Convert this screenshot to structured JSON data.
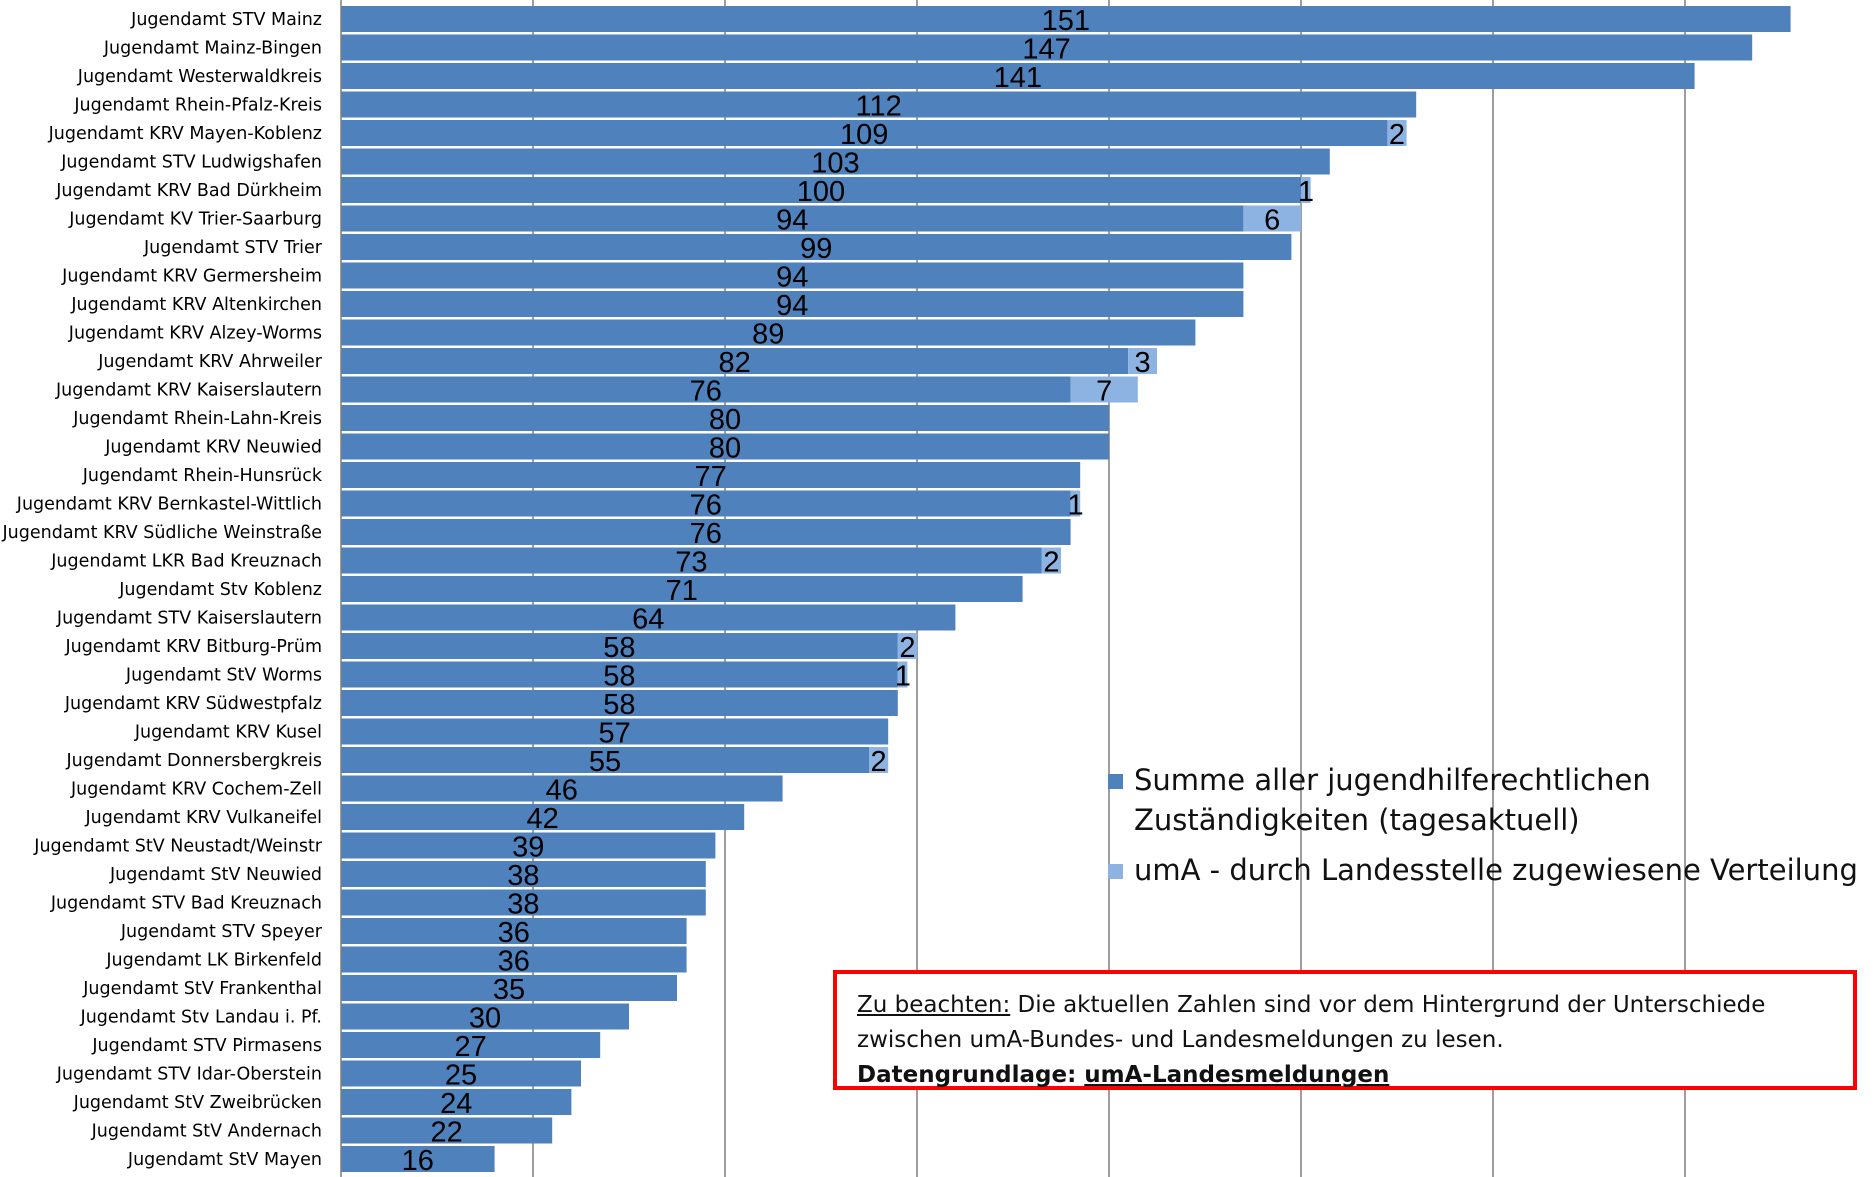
{
  "colors": {
    "series1": "#4f81bd",
    "series2": "#8db3e2",
    "gridline": "#7f7f7f",
    "note_border": "#ff0000"
  },
  "legend": {
    "items": [
      {
        "label": "Summe aller jugendhilferechtlichen Zuständigkeiten (tagesaktuell)",
        "color": "#4f81bd"
      },
      {
        "label": "umA - durch Landesstelle zugewiesene Verteilung",
        "color": "#8db3e2"
      }
    ]
  },
  "note": {
    "prefix": "Zu beachten:",
    "text": " Die aktuellen Zahlen sind vor dem Hintergrund der Unterschiede zwischen umA-Bundes- und Landesmeldungen zu lesen.",
    "source_label": "Datengrundlage: ",
    "source_value": "umA-Landesmeldungen"
  },
  "chart_data": {
    "type": "bar",
    "orientation": "horizontal",
    "stacked": true,
    "xlim": [
      0,
      160
    ],
    "grid": true,
    "legend_position": "bottom-right",
    "categories": [
      "Jugendamt STV Mainz",
      "Jugendamt Mainz-Bingen",
      "Jugendamt Westerwaldkreis",
      "Jugendamt Rhein-Pfalz-Kreis",
      "Jugendamt KRV Mayen-Koblenz",
      "Jugendamt STV Ludwigshafen",
      "Jugendamt KRV Bad Dürkheim",
      "Jugendamt KV Trier-Saarburg",
      "Jugendamt STV Trier",
      "Jugendamt KRV Germersheim",
      "Jugendamt KRV Altenkirchen",
      "Jugendamt KRV Alzey-Worms",
      "Jugendamt KRV Ahrweiler",
      "Jugendamt KRV Kaiserslautern",
      "Jugendamt Rhein-Lahn-Kreis",
      "Jugendamt KRV Neuwied",
      "Jugendamt Rhein-Hunsrück",
      "Jugendamt KRV Bernkastel-Wittlich",
      "Jugendamt KRV Südliche Weinstraße",
      "Jugendamt LKR Bad Kreuznach",
      "Jugendamt Stv Koblenz",
      "Jugendamt STV Kaiserslautern",
      "Jugendamt KRV Bitburg-Prüm",
      "Jugendamt StV Worms",
      "Jugendamt KRV Südwestpfalz",
      "Jugendamt KRV Kusel",
      "Jugendamt Donnersbergkreis",
      "Jugendamt KRV Cochem-Zell",
      "Jugendamt KRV Vulkaneifel",
      "Jugendamt StV Neustadt/Weinstr",
      "Jugendamt StV Neuwied",
      "Jugendamt STV Bad Kreuznach",
      "Jugendamt STV Speyer",
      "Jugendamt LK Birkenfeld",
      "Jugendamt StV Frankenthal",
      "Jugendamt Stv Landau i. Pf.",
      "Jugendamt STV Pirmasens",
      "Jugendamt STV Idar-Oberstein",
      "Jugendamt StV Zweibrücken",
      "Jugendamt StV Andernach",
      "Jugendamt StV Mayen"
    ],
    "series": [
      {
        "name": "Summe aller jugendhilferechtlichen Zuständigkeiten (tagesaktuell)",
        "values": [
          151,
          147,
          141,
          112,
          109,
          103,
          100,
          94,
          99,
          94,
          94,
          89,
          82,
          76,
          80,
          80,
          77,
          76,
          76,
          73,
          71,
          64,
          58,
          58,
          58,
          57,
          55,
          46,
          42,
          39,
          38,
          38,
          36,
          36,
          35,
          30,
          27,
          25,
          24,
          22,
          16
        ]
      },
      {
        "name": "umA - durch Landesstelle zugewiesene Verteilung",
        "values": [
          null,
          null,
          null,
          null,
          2,
          null,
          1,
          6,
          null,
          null,
          null,
          null,
          3,
          7,
          null,
          null,
          null,
          1,
          null,
          2,
          null,
          null,
          2,
          1,
          null,
          null,
          2,
          null,
          null,
          null,
          null,
          null,
          null,
          null,
          null,
          null,
          null,
          null,
          null,
          null,
          null
        ]
      }
    ]
  }
}
